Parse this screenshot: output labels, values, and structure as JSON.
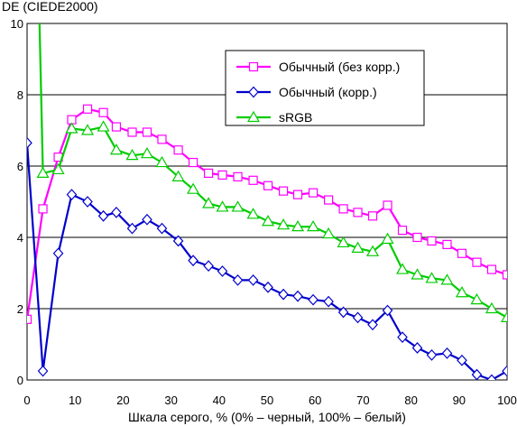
{
  "chart_data": {
    "type": "line",
    "title": "",
    "xlabel": "Шкала серого, % (0% – черный, 100% – белый)",
    "ylabel": "DE (CIEDE2000)",
    "xlim": [
      0,
      100
    ],
    "ylim": [
      0,
      10
    ],
    "xticks": [
      0,
      10,
      20,
      30,
      40,
      50,
      60,
      70,
      80,
      90,
      100
    ],
    "yticks": [
      0,
      2,
      4,
      6,
      8,
      10
    ],
    "grid": "horizontal",
    "legend_position": "top-right",
    "x": [
      0,
      2.6,
      3.3,
      6.5,
      9.3,
      12.6,
      15.9,
      18.6,
      21.9,
      25,
      28.1,
      31.5,
      34.6,
      37.8,
      40.7,
      43.9,
      47.1,
      50.2,
      53.4,
      56.4,
      59.6,
      62.8,
      65.9,
      68.9,
      72,
      75.1,
      78.2,
      81.3,
      84.3,
      87.5,
      90.6,
      93.7,
      96.8,
      100
    ],
    "series": [
      {
        "name": "Обычный (без корр.)",
        "color": "#ff00ff",
        "marker": "square",
        "values": [
          1.7,
          null,
          4.8,
          6.25,
          7.3,
          7.6,
          7.5,
          7.1,
          6.95,
          6.95,
          6.75,
          6.45,
          6.1,
          5.8,
          5.75,
          5.7,
          5.6,
          5.45,
          5.3,
          5.2,
          5.25,
          5.05,
          4.8,
          4.7,
          4.6,
          4.9,
          4.2,
          4.0,
          3.9,
          3.8,
          3.55,
          3.3,
          3.1,
          2.95
        ]
      },
      {
        "name": "Обычный (корр.)",
        "color": "#0000cc",
        "marker": "diamond",
        "values": [
          6.65,
          null,
          0.25,
          3.55,
          5.2,
          5.0,
          4.6,
          4.7,
          4.25,
          4.5,
          4.25,
          3.9,
          3.35,
          3.2,
          3.05,
          2.8,
          2.8,
          2.6,
          2.4,
          2.35,
          2.25,
          2.2,
          1.9,
          1.75,
          1.55,
          1.95,
          1.2,
          0.9,
          0.7,
          0.75,
          0.55,
          0.15,
          0.0,
          0.25
        ]
      },
      {
        "name": "sRGB",
        "color": "#00cc00",
        "marker": "triangle",
        "values": [
          null,
          10.0,
          5.8,
          5.9,
          7.05,
          7.0,
          7.1,
          6.45,
          6.3,
          6.35,
          6.1,
          5.7,
          5.35,
          4.95,
          4.85,
          4.85,
          4.65,
          4.45,
          4.35,
          4.3,
          4.3,
          4.1,
          3.85,
          3.7,
          3.6,
          3.95,
          3.1,
          2.95,
          2.85,
          2.8,
          2.45,
          2.25,
          2.0,
          1.75
        ]
      }
    ]
  }
}
